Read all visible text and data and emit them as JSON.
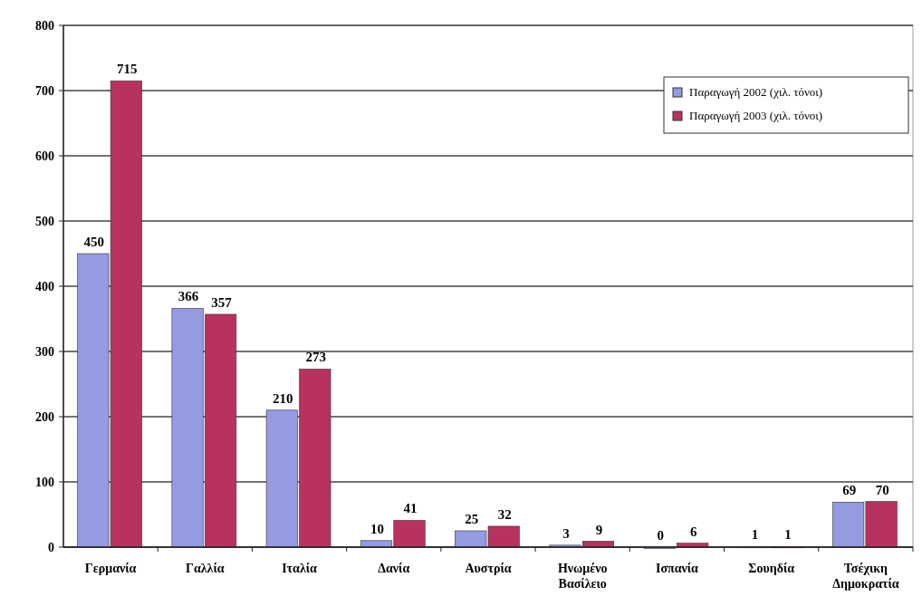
{
  "chart_data": {
    "type": "bar",
    "categories": [
      "Γερμανία",
      "Γαλλία",
      "Ιταλία",
      "Δανία",
      "Αυστρία",
      "Ηνωμένο Βασίλειο",
      "Ισπανία",
      "Σουηδία",
      "Τσέχικη Δημοκρατία"
    ],
    "series": [
      {
        "name": "Παραγωγή 2002 (χιλ. τόνοι)",
        "color": "#959be0",
        "values": [
          450,
          366,
          210,
          10,
          25,
          3,
          0,
          1,
          69
        ]
      },
      {
        "name": "Παραγωγή 2003 (χιλ. τόνοι)",
        "color": "#b83260",
        "values": [
          715,
          357,
          273,
          41,
          32,
          9,
          6,
          1,
          70
        ]
      }
    ],
    "ylim": [
      0,
      800
    ],
    "yticks": [
      0,
      100,
      200,
      300,
      400,
      500,
      600,
      700,
      800
    ],
    "grid": "y",
    "legend": "top right",
    "data_labels": true
  }
}
